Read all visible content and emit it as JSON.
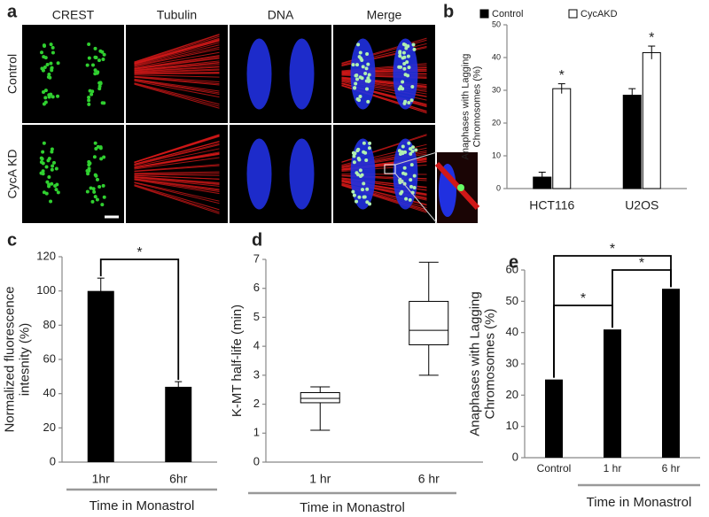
{
  "panel_a": {
    "letter": "a",
    "columns": [
      "CREST",
      "Tubulin",
      "DNA",
      "Merge"
    ],
    "rows": [
      "Control",
      "CycA KD"
    ]
  },
  "chart_data": [
    {
      "type": "grouped-bar",
      "panel": "b",
      "ylabel": [
        "Anaphases with Lagging",
        "Chromosomes (%)"
      ],
      "categories": [
        "HCT116",
        "U2OS"
      ],
      "series": [
        {
          "name": "Control",
          "color": "#000000",
          "values": [
            3.5,
            28.5
          ],
          "errors": [
            1.5,
            2
          ]
        },
        {
          "name": "CycAKD",
          "color": "#ffffff",
          "values": [
            30.5,
            41.5
          ],
          "errors": [
            1.5,
            2
          ],
          "significance": [
            "*",
            "*"
          ]
        }
      ],
      "ylim": [
        0,
        50
      ],
      "yticks": [
        0,
        10,
        20,
        30,
        40,
        50
      ],
      "legend": "top"
    },
    {
      "type": "bar",
      "panel": "c",
      "ylabel": [
        "Normalized fluorescence",
        "intesnity (%)"
      ],
      "xlabel": "Time in Monastrol",
      "categories": [
        "1hr",
        "6hr"
      ],
      "values": [
        100,
        44
      ],
      "errors": [
        7.5,
        3
      ],
      "color": "#000000",
      "significance": [
        "*"
      ],
      "ylim": [
        0,
        120
      ],
      "yticks": [
        0,
        20,
        40,
        60,
        80,
        100,
        120
      ]
    },
    {
      "type": "box",
      "panel": "d",
      "ylabel": [
        "K-MT half-life (min)"
      ],
      "xlabel": "Time in Monastrol",
      "categories": [
        "1 hr",
        "6 hr"
      ],
      "stats": [
        {
          "min": 1.1,
          "q1": 2.05,
          "median": 2.2,
          "q3": 2.4,
          "max": 2.6
        },
        {
          "min": 3.0,
          "q1": 4.05,
          "median": 4.55,
          "q3": 5.55,
          "max": 6.9
        }
      ],
      "ylim": [
        0,
        7
      ],
      "yticks": [
        0,
        1,
        2,
        3,
        4,
        5,
        6,
        7
      ]
    },
    {
      "type": "bar",
      "panel": "e",
      "ylabel": [
        "Anaphases with Lagging",
        "Chromosomes (%)"
      ],
      "xlabel": "Time in Monastrol",
      "categories": [
        "Control",
        "1 hr",
        "6 hr"
      ],
      "values": [
        25,
        41,
        54
      ],
      "color": "#000000",
      "significance": [
        "*",
        "*",
        "*"
      ],
      "ylim": [
        0,
        60
      ],
      "yticks": [
        0,
        10,
        20,
        30,
        40,
        50,
        60
      ]
    }
  ]
}
